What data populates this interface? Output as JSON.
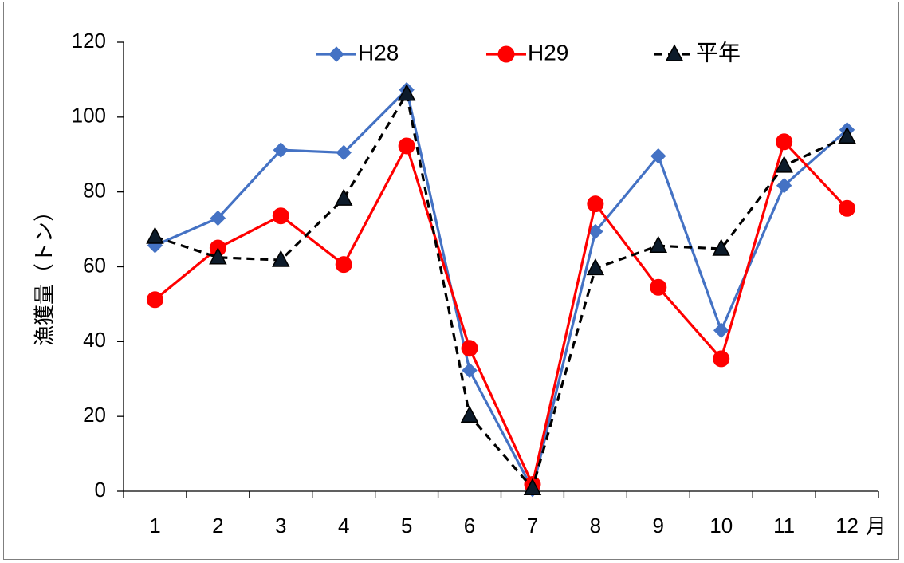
{
  "chart_data": {
    "type": "line",
    "title": "",
    "xlabel": "月",
    "ylabel": "漁獲量（トン）",
    "categories": [
      "1",
      "2",
      "3",
      "4",
      "5",
      "6",
      "7",
      "8",
      "9",
      "10",
      "11",
      "12"
    ],
    "ylim": [
      0,
      120
    ],
    "yticks": [
      0,
      20,
      40,
      60,
      80,
      100,
      120
    ],
    "ytick_labels": [
      "0",
      "20",
      "40",
      "60",
      "80",
      "100",
      "120"
    ],
    "grid": false,
    "legend_position": "top",
    "series": [
      {
        "name": "H28",
        "color": "#4472C4",
        "marker": "diamond",
        "line_style": "solid",
        "values": [
          65.7,
          73,
          91.2,
          90.5,
          107.3,
          32.3,
          0.5,
          69.4,
          89.6,
          43,
          81.7,
          96.6
        ]
      },
      {
        "name": "H29",
        "color": "#FF0000",
        "marker": "circle",
        "line_style": "solid",
        "values": [
          51.2,
          65,
          73.6,
          60.6,
          92.3,
          38.2,
          1.8,
          76.8,
          54.5,
          35.4,
          93.4,
          75.6
        ]
      },
      {
        "name": "平年",
        "color": "#000000",
        "marker": "triangle",
        "line_style": "dashed",
        "values": [
          68,
          62.5,
          61.8,
          78.2,
          106.2,
          20.2,
          0.8,
          59.6,
          65.6,
          64.8,
          87,
          94.8
        ]
      }
    ]
  }
}
